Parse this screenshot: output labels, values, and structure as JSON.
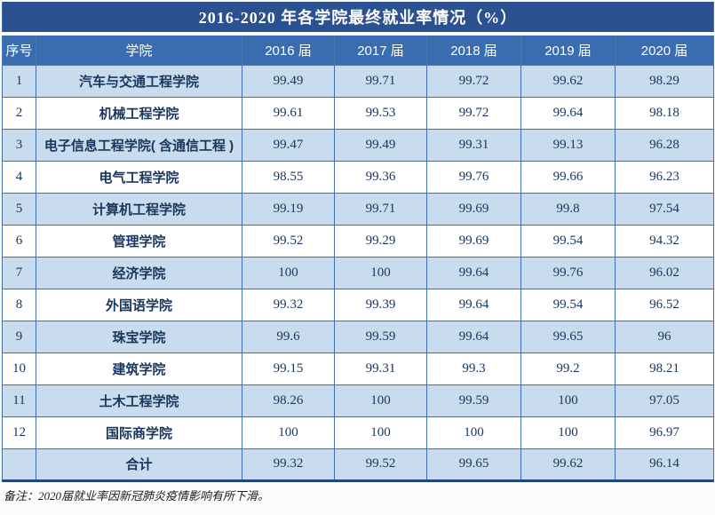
{
  "title": "2016-2020 年各学院最终就业率情况（%）",
  "columns": [
    "序号",
    "学院",
    "2016 届",
    "2017 届",
    "2018 届",
    "2019 届",
    "2020 届"
  ],
  "rows": [
    {
      "no": "1",
      "college": "汽车与交通工程学院",
      "values": [
        "99.49",
        "99.71",
        "99.72",
        "99.62",
        "98.29"
      ]
    },
    {
      "no": "2",
      "college": "机械工程学院",
      "values": [
        "99.61",
        "99.53",
        "99.72",
        "99.64",
        "98.18"
      ]
    },
    {
      "no": "3",
      "college": "电子信息工程学院( 含通信工程 )",
      "values": [
        "99.47",
        "99.49",
        "99.31",
        "99.13",
        "96.28"
      ]
    },
    {
      "no": "4",
      "college": "电气工程学院",
      "values": [
        "98.55",
        "99.36",
        "99.76",
        "99.66",
        "96.23"
      ]
    },
    {
      "no": "5",
      "college": "计算机工程学院",
      "values": [
        "99.19",
        "99.71",
        "99.69",
        "99.8",
        "97.54"
      ]
    },
    {
      "no": "6",
      "college": "管理学院",
      "values": [
        "99.52",
        "99.29",
        "99.69",
        "99.54",
        "94.32"
      ]
    },
    {
      "no": "7",
      "college": "经济学院",
      "values": [
        "100",
        "100",
        "99.64",
        "99.76",
        "96.02"
      ]
    },
    {
      "no": "8",
      "college": "外国语学院",
      "values": [
        "99.32",
        "99.39",
        "99.64",
        "99.54",
        "96.52"
      ]
    },
    {
      "no": "9",
      "college": "珠宝学院",
      "values": [
        "99.6",
        "99.59",
        "99.64",
        "99.65",
        "96"
      ]
    },
    {
      "no": "10",
      "college": "建筑学院",
      "values": [
        "99.15",
        "99.31",
        "99.3",
        "99.2",
        "98.21"
      ]
    },
    {
      "no": "11",
      "college": "土木工程学院",
      "values": [
        "98.26",
        "100",
        "99.59",
        "100",
        "97.05"
      ]
    },
    {
      "no": "12",
      "college": "国际商学院",
      "values": [
        "100",
        "100",
        "100",
        "100",
        "96.97"
      ]
    }
  ],
  "total": {
    "no": "",
    "college": "合计",
    "values": [
      "99.32",
      "99.52",
      "99.65",
      "99.62",
      "96.14"
    ]
  },
  "footnote": "备注：2020届就业率因新冠肺炎疫情影响有所下滑。",
  "colors": {
    "title_bar_bg": "#2c5190",
    "header_bg": "#3a6cb0",
    "row_alt_bg": "#c9dcee",
    "row_bg": "#ffffff",
    "border": "#3f6fb4",
    "cell_text": "#17365d",
    "header_text": "#ffffff"
  },
  "chart_data": {
    "type": "table",
    "title": "2016-2020 年各学院最终就业率情况（%）",
    "categories": [
      "2016 届",
      "2017 届",
      "2018 届",
      "2019 届",
      "2020 届"
    ],
    "series": [
      {
        "name": "汽车与交通工程学院",
        "values": [
          99.49,
          99.71,
          99.72,
          99.62,
          98.29
        ]
      },
      {
        "name": "机械工程学院",
        "values": [
          99.61,
          99.53,
          99.72,
          99.64,
          98.18
        ]
      },
      {
        "name": "电子信息工程学院( 含通信工程 )",
        "values": [
          99.47,
          99.49,
          99.31,
          99.13,
          96.28
        ]
      },
      {
        "name": "电气工程学院",
        "values": [
          98.55,
          99.36,
          99.76,
          99.66,
          96.23
        ]
      },
      {
        "name": "计算机工程学院",
        "values": [
          99.19,
          99.71,
          99.69,
          99.8,
          97.54
        ]
      },
      {
        "name": "管理学院",
        "values": [
          99.52,
          99.29,
          99.69,
          99.54,
          94.32
        ]
      },
      {
        "name": "经济学院",
        "values": [
          100,
          100,
          99.64,
          99.76,
          96.02
        ]
      },
      {
        "name": "外国语学院",
        "values": [
          99.32,
          99.39,
          99.64,
          99.54,
          96.52
        ]
      },
      {
        "name": "珠宝学院",
        "values": [
          99.6,
          99.59,
          99.64,
          99.65,
          96
        ]
      },
      {
        "name": "建筑学院",
        "values": [
          99.15,
          99.31,
          99.3,
          99.2,
          98.21
        ]
      },
      {
        "name": "土木工程学院",
        "values": [
          98.26,
          100,
          99.59,
          100,
          97.05
        ]
      },
      {
        "name": "国际商学院",
        "values": [
          100,
          100,
          100,
          100,
          96.97
        ]
      },
      {
        "name": "合计",
        "values": [
          99.32,
          99.52,
          99.65,
          99.62,
          96.14
        ]
      }
    ]
  }
}
